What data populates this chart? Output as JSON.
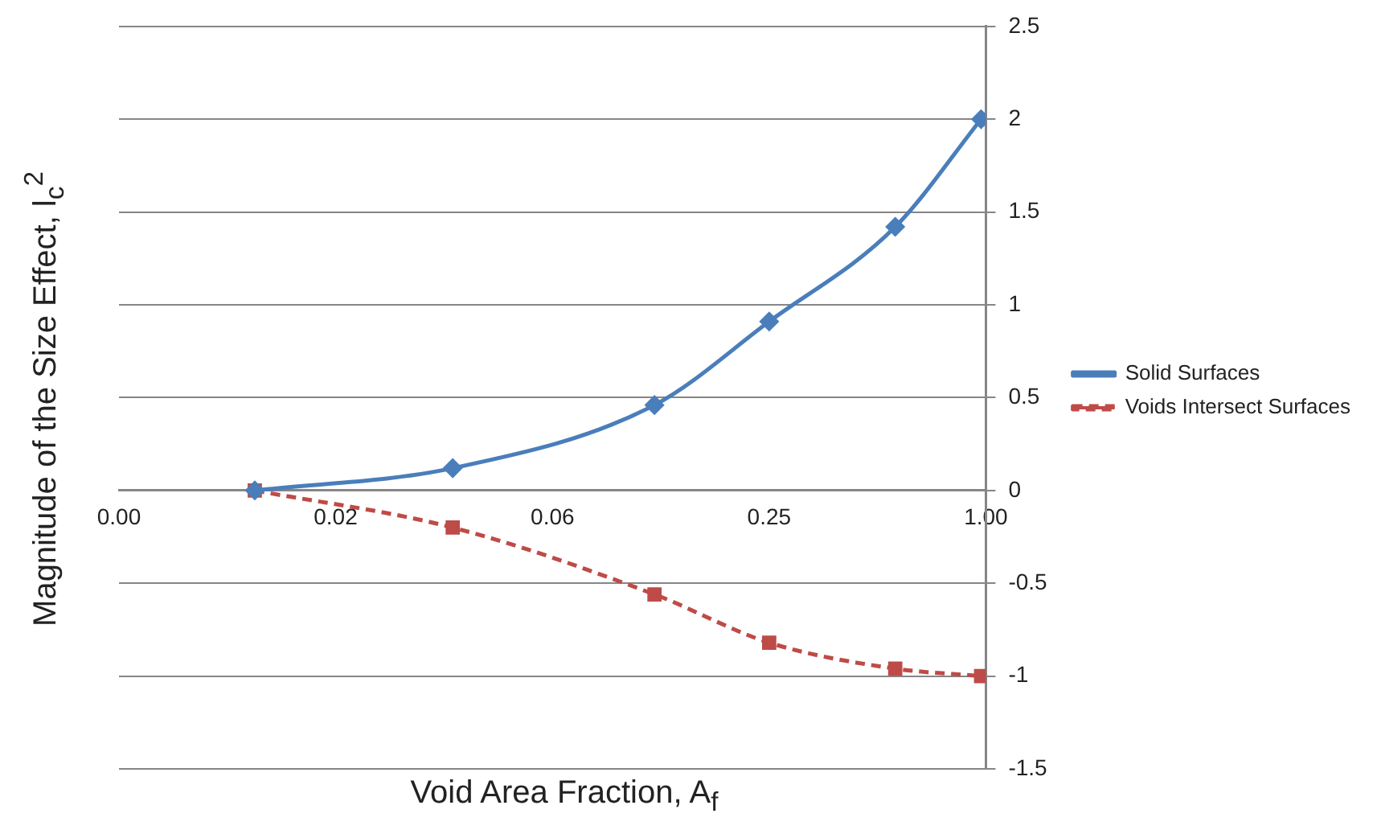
{
  "chart_data": {
    "type": "line",
    "xlabel": "Void Area Fraction, A$_{f}$",
    "ylabel": "Magnitude of the Size Effect, l$_{c}$$^{2}$",
    "x": [
      0.0093,
      0.033,
      0.12,
      0.25,
      0.56,
      0.97
    ],
    "log": "x",
    "xlim": [
      0.0039,
      1
    ],
    "xticks": [
      {
        "value": 0.0039,
        "label": "0.00"
      },
      {
        "value": 0.0156,
        "label": "0.02"
      },
      {
        "value": 0.0625,
        "label": "0.06"
      },
      {
        "value": 0.25,
        "label": "0.25"
      },
      {
        "value": 1,
        "label": "1.00"
      }
    ],
    "ylim": [
      -1.5,
      2.5
    ],
    "yticks": [
      -1.5,
      -1,
      -0.5,
      0,
      0.5,
      1,
      1.5,
      2,
      2.5
    ],
    "grid": "y",
    "legend": "right",
    "series": [
      {
        "name": "Solid Surfaces",
        "color": "#4a7ebb",
        "values": [
          0,
          0.12,
          0.46,
          0.91,
          1.42,
          2.0
        ],
        "marker": "diamond",
        "line_style": "solid"
      },
      {
        "name": "Voids Intersect Surfaces",
        "color": "#be4b48",
        "values": [
          0,
          -0.2,
          -0.56,
          -0.82,
          -0.96,
          -1.0
        ],
        "marker": "square",
        "line_style": "dashed"
      }
    ]
  }
}
